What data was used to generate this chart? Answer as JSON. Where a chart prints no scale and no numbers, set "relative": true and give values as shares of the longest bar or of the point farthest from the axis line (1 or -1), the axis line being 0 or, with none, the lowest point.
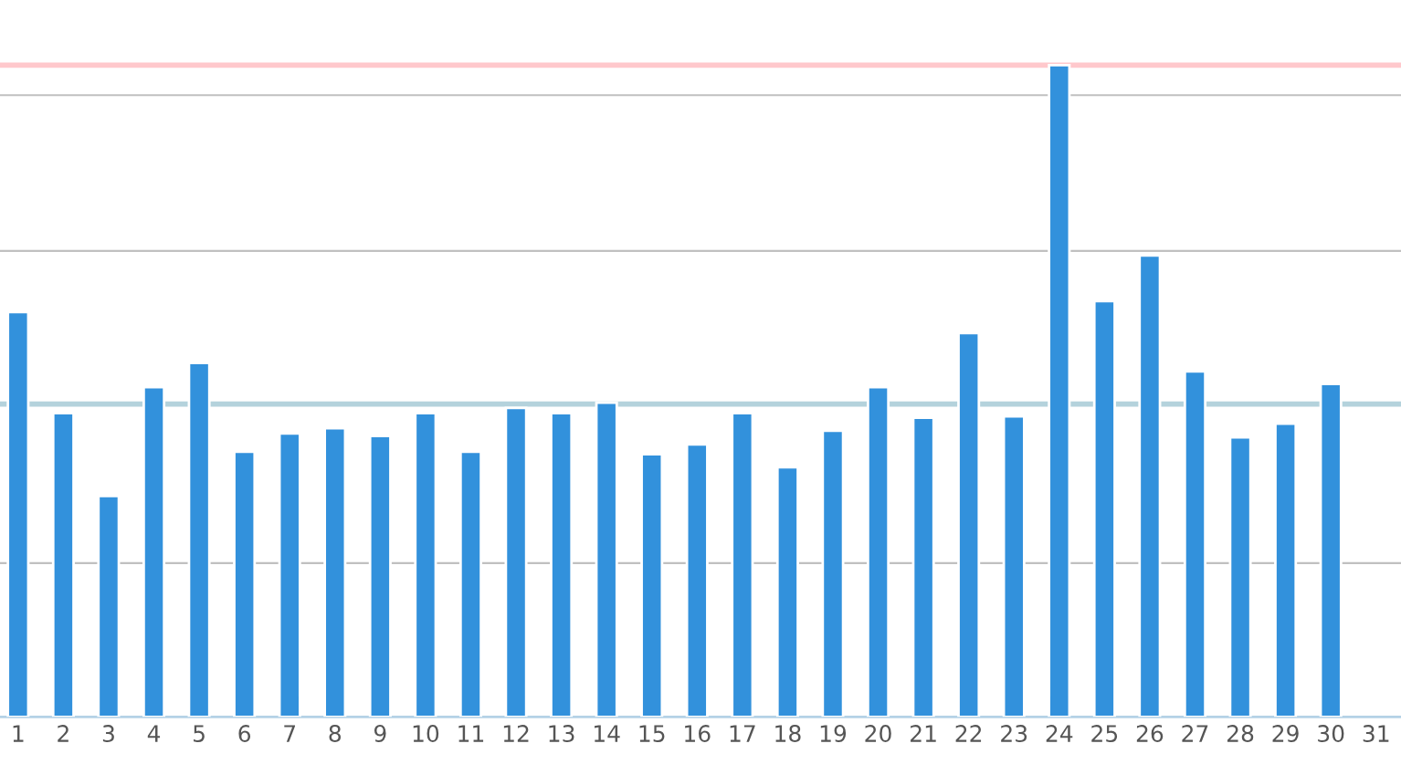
{
  "chart_data": {
    "type": "bar",
    "relative": true,
    "categories": [
      "1",
      "2",
      "3",
      "4",
      "5",
      "6",
      "7",
      "8",
      "9",
      "10",
      "11",
      "12",
      "13",
      "14",
      "15",
      "16",
      "17",
      "18",
      "19",
      "20",
      "21",
      "22",
      "23",
      "24",
      "25",
      "26",
      "27",
      "28",
      "29",
      "30",
      "31"
    ],
    "series": [
      {
        "color": "#3291dc",
        "values": [
          0.621,
          0.466,
          0.339,
          0.506,
          0.543,
          0.407,
          0.435,
          0.443,
          0.431,
          0.466,
          0.407,
          0.474,
          0.466,
          0.482,
          0.403,
          0.418,
          0.466,
          0.383,
          0.439,
          0.506,
          0.459,
          0.589,
          0.461,
          1.0,
          0.638,
          0.708,
          0.53,
          0.429,
          0.45,
          0.511,
          null
        ]
      }
    ],
    "ref_lines": [
      {
        "axis": "y",
        "value": 0.954,
        "color": "#c0c0c0"
      },
      {
        "axis": "y",
        "value": 0.715,
        "color": "#c0c0c0"
      },
      {
        "axis": "y",
        "value": 0.236,
        "color": "#c0c0c0"
      },
      {
        "axis": "y",
        "value": 0.48,
        "color": "#b4d2dc"
      },
      {
        "axis": "y",
        "value": 1.0,
        "color": "#ffc8cc"
      }
    ],
    "legend": false
  }
}
